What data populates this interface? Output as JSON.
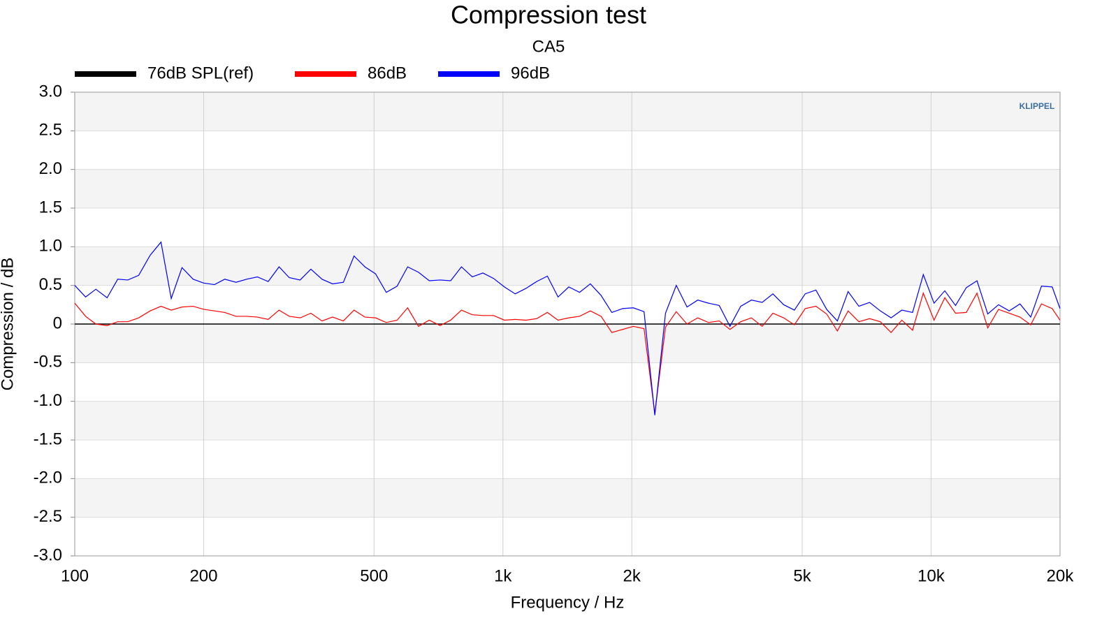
{
  "chart_data": {
    "type": "line",
    "title": "Compression test",
    "subtitle": "CA5",
    "xlabel": "Frequency / Hz",
    "ylabel": "Compression / dB",
    "watermark": "KLIPPEL",
    "xscale": "log",
    "grid": true,
    "legend": "top",
    "xlim": [
      100,
      20000
    ],
    "ylim": [
      -3,
      3
    ],
    "xticks": [
      100,
      200,
      500,
      {
        "value": 1000,
        "label": "1k"
      },
      {
        "value": 2000,
        "label": "2k"
      },
      {
        "value": 5000,
        "label": "5k"
      },
      {
        "value": 10000,
        "label": "10k"
      },
      {
        "value": 20000,
        "label": "20k"
      }
    ],
    "yticks": [
      {
        "value": 3,
        "label": "3.0"
      },
      2.5,
      {
        "value": 2,
        "label": "2.0"
      },
      1.5,
      {
        "value": 1,
        "label": "1.0"
      },
      0.5,
      0,
      -0.5,
      {
        "value": -1,
        "label": "-1.0"
      },
      -1.5,
      {
        "value": -2,
        "label": "-2.0"
      },
      -2.5,
      {
        "value": -3,
        "label": "-3.0"
      }
    ],
    "x": [
      100,
      106,
      112,
      119,
      126,
      133,
      141,
      150,
      159,
      168,
      178,
      189,
      200,
      212,
      224,
      238,
      252,
      267,
      283,
      300,
      317,
      336,
      356,
      378,
      400,
      424,
      449,
      476,
      504,
      534,
      566,
      599,
      635,
      673,
      713,
      755,
      800,
      848,
      898,
      951,
      1008,
      1068,
      1131,
      1199,
      1270,
      1345,
      1425,
      1510,
      1600,
      1695,
      1796,
      1903,
      2016,
      2136,
      2263,
      2397,
      2540,
      2691,
      2851,
      3020,
      3200,
      3390,
      3592,
      3805,
      4032,
      4271,
      4525,
      4794,
      5080,
      5382,
      5702,
      6041,
      6400,
      6781,
      7184,
      7611,
      8063,
      8543,
      9051,
      9589,
      10159,
      10763,
      11404,
      12082,
      12800,
      13561,
      14368,
      15222,
      16127,
      17086,
      18102,
      19178,
      20000
    ],
    "series": [
      {
        "name": "76dB SPL(ref)",
        "color": "#000000",
        "values": [
          0,
          0,
          0,
          0,
          0,
          0,
          0,
          0,
          0,
          0,
          0,
          0,
          0,
          0,
          0,
          0,
          0,
          0,
          0,
          0,
          0,
          0,
          0,
          0,
          0,
          0,
          0,
          0,
          0,
          0,
          0,
          0,
          0,
          0,
          0,
          0,
          0,
          0,
          0,
          0,
          0,
          0,
          0,
          0,
          0,
          0,
          0,
          0,
          0,
          0,
          0,
          0,
          0,
          0,
          0,
          0,
          0,
          0,
          0,
          0,
          0,
          0,
          0,
          0,
          0,
          0,
          0,
          0,
          0,
          0,
          0,
          0,
          0,
          0,
          0,
          0,
          0,
          0,
          0,
          0,
          0,
          0,
          0,
          0,
          0,
          0,
          0,
          0,
          0,
          0,
          0,
          0,
          0
        ]
      },
      {
        "name": "86dB",
        "color": "#ff0000",
        "values": [
          0.27,
          0.1,
          0.0,
          -0.02,
          0.03,
          0.03,
          0.08,
          0.17,
          0.23,
          0.18,
          0.22,
          0.23,
          0.19,
          0.17,
          0.15,
          0.1,
          0.1,
          0.09,
          0.06,
          0.18,
          0.1,
          0.08,
          0.14,
          0.04,
          0.09,
          0.04,
          0.18,
          0.09,
          0.08,
          0.02,
          0.05,
          0.21,
          -0.03,
          0.05,
          -0.02,
          0.05,
          0.18,
          0.12,
          0.11,
          0.11,
          0.05,
          0.06,
          0.05,
          0.07,
          0.15,
          0.05,
          0.08,
          0.1,
          0.17,
          0.1,
          -0.11,
          -0.07,
          -0.03,
          -0.06,
          -1.16,
          -0.04,
          0.16,
          0.0,
          0.08,
          0.02,
          0.04,
          -0.07,
          0.03,
          0.08,
          -0.03,
          0.14,
          0.08,
          -0.01,
          0.2,
          0.23,
          0.13,
          -0.09,
          0.17,
          0.03,
          0.07,
          0.03,
          -0.11,
          0.05,
          -0.08,
          0.4,
          0.05,
          0.34,
          0.14,
          0.15,
          0.4,
          -0.05,
          0.19,
          0.14,
          0.09,
          -0.01,
          0.26,
          0.2,
          0.05
        ]
      },
      {
        "name": "96dB",
        "color": "#0000ff",
        "values": [
          0.5,
          0.35,
          0.45,
          0.34,
          0.58,
          0.57,
          0.63,
          0.89,
          1.06,
          0.33,
          0.73,
          0.58,
          0.53,
          0.51,
          0.58,
          0.54,
          0.58,
          0.61,
          0.55,
          0.74,
          0.6,
          0.57,
          0.71,
          0.58,
          0.52,
          0.54,
          0.88,
          0.74,
          0.65,
          0.41,
          0.49,
          0.74,
          0.67,
          0.56,
          0.57,
          0.56,
          0.74,
          0.61,
          0.66,
          0.59,
          0.48,
          0.39,
          0.46,
          0.55,
          0.62,
          0.35,
          0.48,
          0.41,
          0.52,
          0.37,
          0.15,
          0.2,
          0.21,
          0.16,
          -1.18,
          0.14,
          0.5,
          0.22,
          0.31,
          0.27,
          0.24,
          -0.03,
          0.23,
          0.31,
          0.28,
          0.39,
          0.25,
          0.18,
          0.39,
          0.44,
          0.19,
          0.04,
          0.42,
          0.23,
          0.28,
          0.17,
          0.08,
          0.18,
          0.15,
          0.64,
          0.27,
          0.43,
          0.24,
          0.47,
          0.56,
          0.13,
          0.25,
          0.17,
          0.26,
          0.09,
          0.49,
          0.48,
          0.2
        ]
      }
    ]
  }
}
